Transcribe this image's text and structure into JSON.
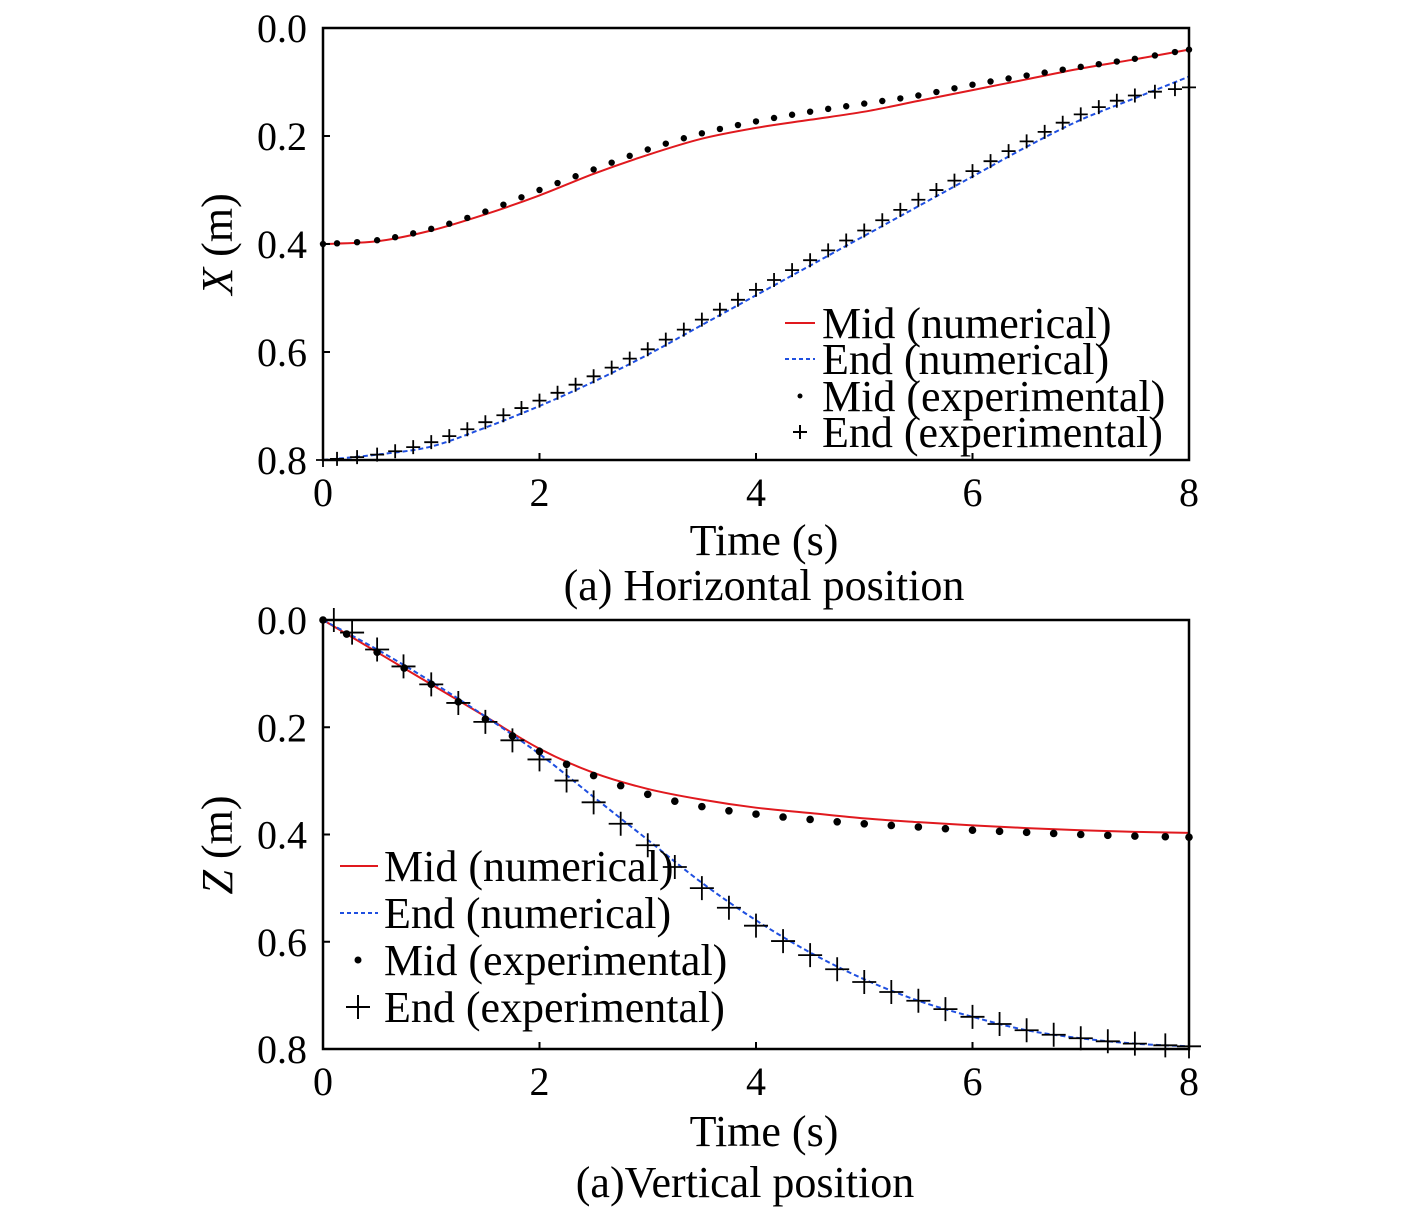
{
  "chart_data": [
    {
      "type": "line",
      "caption": "(a) Horizontal position",
      "xlabel": "Time (s)",
      "ylabel_var": "X",
      "ylabel_unit": " (m)",
      "xlim": [
        0,
        8
      ],
      "ylim": [
        0.0,
        0.8
      ],
      "y_inverted": true,
      "xticks": [
        "0",
        "2",
        "4",
        "6",
        "8"
      ],
      "yticks": [
        "0.0",
        "0.2",
        "0.4",
        "0.6",
        "0.8"
      ],
      "grid": false,
      "legend_position": "bottom-right",
      "series": [
        {
          "name": "Mid (numerical)",
          "style": "solid-line",
          "color": "#e0191e",
          "x": [
            0,
            0.5,
            1.0,
            1.5,
            2.0,
            2.5,
            3.0,
            3.5,
            4.0,
            4.5,
            5.0,
            5.5,
            6.0,
            6.5,
            7.0,
            7.5,
            8.0
          ],
          "y": [
            0.4,
            0.395,
            0.375,
            0.345,
            0.31,
            0.27,
            0.235,
            0.205,
            0.185,
            0.17,
            0.155,
            0.135,
            0.115,
            0.095,
            0.075,
            0.058,
            0.04
          ]
        },
        {
          "name": "End (numerical)",
          "style": "dashed-line",
          "color": "#1f4fe0",
          "x": [
            0,
            0.5,
            1.0,
            1.5,
            2.0,
            2.5,
            3.0,
            3.5,
            4.0,
            4.5,
            5.0,
            5.5,
            6.0,
            6.5,
            7.0,
            7.5,
            8.0
          ],
          "y": [
            0.8,
            0.79,
            0.775,
            0.74,
            0.7,
            0.655,
            0.605,
            0.55,
            0.495,
            0.44,
            0.385,
            0.33,
            0.275,
            0.22,
            0.17,
            0.13,
            0.09
          ]
        },
        {
          "name": "Mid (experimental)",
          "style": "dot-marker",
          "color": "#000000",
          "x": [
            0,
            0.5,
            1.0,
            1.5,
            2.0,
            2.5,
            3.0,
            3.5,
            4.0,
            4.5,
            5.0,
            5.5,
            6.0,
            6.5,
            7.0,
            7.5,
            8.0
          ],
          "y": [
            0.4,
            0.393,
            0.372,
            0.34,
            0.3,
            0.262,
            0.225,
            0.195,
            0.173,
            0.155,
            0.14,
            0.125,
            0.105,
            0.088,
            0.072,
            0.057,
            0.04
          ]
        },
        {
          "name": "End (experimental)",
          "style": "plus-marker",
          "color": "#000000",
          "x": [
            0,
            0.5,
            1.0,
            1.5,
            2.0,
            2.5,
            3.0,
            3.5,
            4.0,
            4.5,
            5.0,
            5.5,
            6.0,
            6.5,
            7.0,
            7.5,
            8.0
          ],
          "y": [
            0.8,
            0.79,
            0.767,
            0.73,
            0.69,
            0.645,
            0.595,
            0.54,
            0.485,
            0.43,
            0.375,
            0.318,
            0.265,
            0.21,
            0.16,
            0.125,
            0.11
          ]
        }
      ]
    },
    {
      "type": "line",
      "caption": "(a)Vertical position",
      "xlabel": "Time (s)",
      "ylabel_var": "Z",
      "ylabel_unit": " (m)",
      "xlim": [
        0,
        8
      ],
      "ylim": [
        0.0,
        0.8
      ],
      "y_inverted": true,
      "xticks": [
        "0",
        "2",
        "4",
        "6",
        "8"
      ],
      "yticks": [
        "0.0",
        "0.2",
        "0.4",
        "0.6",
        "0.8"
      ],
      "grid": false,
      "legend_position": "bottom-left",
      "series": [
        {
          "name": "Mid (numerical)",
          "style": "solid-line",
          "color": "#e0191e",
          "x": [
            0,
            0.5,
            1.0,
            1.5,
            2.0,
            2.5,
            3.0,
            3.5,
            4.0,
            4.5,
            5.0,
            5.5,
            6.0,
            6.5,
            7.0,
            7.5,
            8.0
          ],
          "y": [
            0.0,
            0.06,
            0.12,
            0.18,
            0.24,
            0.285,
            0.315,
            0.335,
            0.35,
            0.36,
            0.37,
            0.377,
            0.383,
            0.388,
            0.392,
            0.395,
            0.397
          ]
        },
        {
          "name": "End (numerical)",
          "style": "dashed-line",
          "color": "#1f4fe0",
          "x": [
            0,
            0.5,
            1.0,
            1.5,
            2.0,
            2.5,
            3.0,
            3.5,
            4.0,
            4.5,
            5.0,
            5.5,
            6.0,
            6.5,
            7.0,
            7.5,
            8.0
          ],
          "y": [
            0.0,
            0.055,
            0.115,
            0.18,
            0.25,
            0.33,
            0.41,
            0.49,
            0.56,
            0.62,
            0.67,
            0.71,
            0.74,
            0.765,
            0.78,
            0.79,
            0.795
          ]
        },
        {
          "name": "Mid (experimental)",
          "style": "dot-marker",
          "color": "#000000",
          "x": [
            0,
            0.5,
            1.0,
            1.5,
            2.0,
            2.5,
            3.0,
            3.5,
            4.0,
            4.5,
            5.0,
            5.5,
            6.0,
            6.5,
            7.0,
            7.5,
            8.0
          ],
          "y": [
            0.0,
            0.06,
            0.12,
            0.185,
            0.245,
            0.29,
            0.325,
            0.348,
            0.362,
            0.372,
            0.38,
            0.386,
            0.392,
            0.396,
            0.4,
            0.403,
            0.405
          ]
        },
        {
          "name": "End (experimental)",
          "style": "plus-marker",
          "color": "#000000",
          "x": [
            0.1,
            0.5,
            1.0,
            1.5,
            2.0,
            2.5,
            3.0,
            3.5,
            4.0,
            4.5,
            5.0,
            5.5,
            6.0,
            6.5,
            7.0,
            7.5,
            8.0
          ],
          "y": [
            0.0,
            0.055,
            0.12,
            0.19,
            0.26,
            0.34,
            0.42,
            0.5,
            0.57,
            0.625,
            0.675,
            0.71,
            0.74,
            0.765,
            0.78,
            0.79,
            0.795
          ]
        }
      ]
    }
  ]
}
